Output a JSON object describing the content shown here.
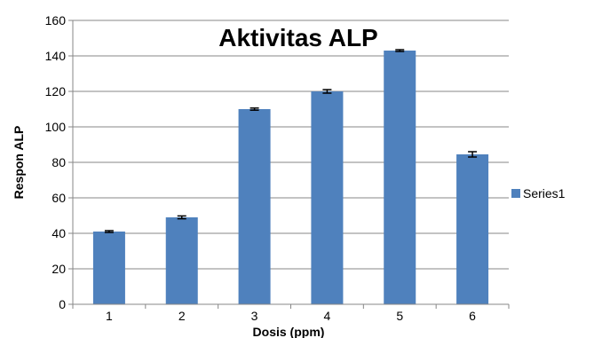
{
  "chart_data": {
    "type": "bar",
    "title": "Aktivitas ALP",
    "xlabel": "Dosis (ppm)",
    "ylabel": "Respon ALP",
    "categories": [
      "1",
      "2",
      "3",
      "4",
      "5",
      "6"
    ],
    "series": [
      {
        "name": "Series1",
        "values": [
          41,
          49,
          110,
          120,
          143,
          84.5
        ],
        "errors": [
          0.5,
          0.8,
          0.6,
          1.0,
          0.5,
          1.5
        ],
        "color": "#4f81bd"
      }
    ],
    "ylim": [
      0,
      160
    ],
    "yticks": [
      "0",
      "20",
      "40",
      "60",
      "80",
      "100",
      "120",
      "140",
      "160"
    ],
    "grid": true,
    "legend": "right"
  }
}
